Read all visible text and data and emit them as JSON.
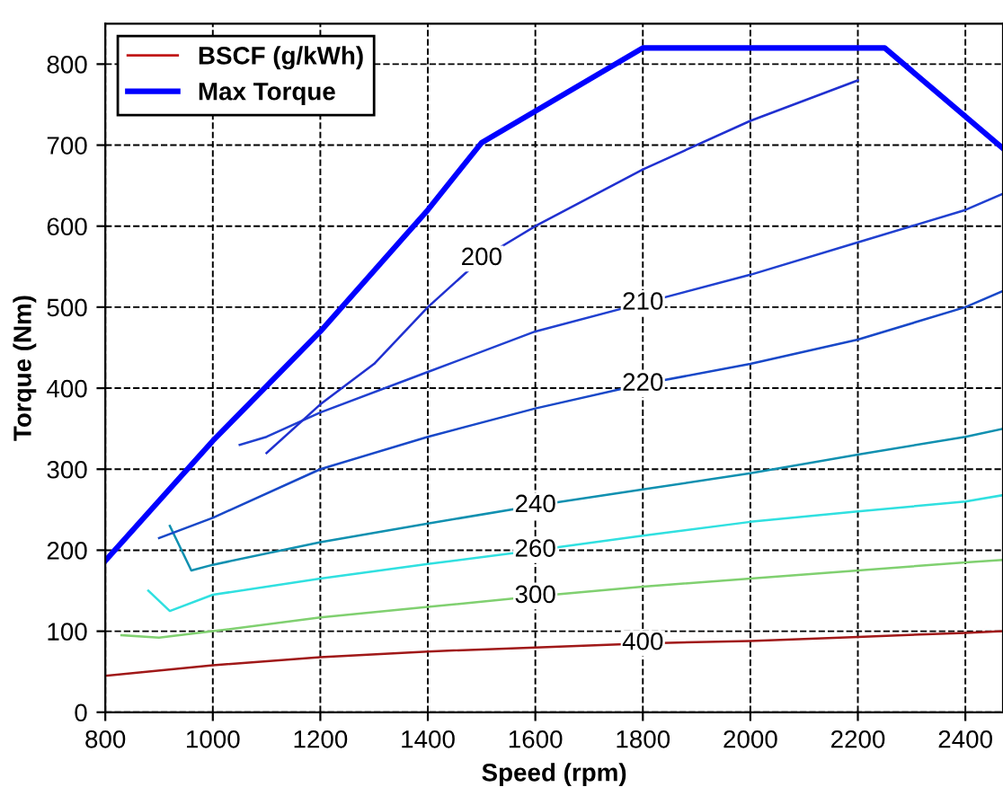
{
  "chart_data": {
    "type": "line",
    "xlabel": "Speed (rpm)",
    "ylabel": "Torque (Nm)",
    "legend_title": "BSCF (g/kWh)",
    "legend": "top left",
    "grid": true,
    "line_style": "solid",
    "marker": "none",
    "xlim": [
      800,
      2470
    ],
    "ylim": [
      0,
      850
    ],
    "xticks": [
      800,
      1000,
      1200,
      1400,
      1600,
      1800,
      2000,
      2200,
      2400
    ],
    "yticks": [
      0,
      100,
      200,
      300,
      400,
      500,
      600,
      700,
      800
    ],
    "series": [
      {
        "name": "400",
        "color": "#a01818",
        "x": [
          800,
          1000,
          1200,
          1400,
          1600,
          1800,
          2000,
          2200,
          2400,
          2470
        ],
        "values": [
          45,
          58,
          68,
          75,
          80,
          85,
          88,
          93,
          98,
          100
        ]
      },
      {
        "name": "300",
        "color": "#80d070",
        "x": [
          830,
          900,
          1000,
          1200,
          1400,
          1600,
          1800,
          2000,
          2200,
          2400,
          2470
        ],
        "values": [
          95,
          92,
          100,
          117,
          130,
          143,
          155,
          165,
          175,
          185,
          188
        ]
      },
      {
        "name": "260",
        "color": "#30e0e0",
        "x": [
          880,
          920,
          1000,
          1200,
          1400,
          1600,
          1800,
          2000,
          2200,
          2400,
          2470
        ],
        "values": [
          150,
          125,
          145,
          165,
          183,
          200,
          218,
          235,
          248,
          260,
          268
        ]
      },
      {
        "name": "240",
        "color": "#1090b0",
        "x": [
          920,
          960,
          1000,
          1200,
          1400,
          1600,
          1800,
          2000,
          2200,
          2400,
          2470
        ],
        "values": [
          230,
          175,
          182,
          210,
          233,
          255,
          275,
          295,
          318,
          340,
          350
        ]
      },
      {
        "name": "220",
        "color": "#1848c8",
        "x": [
          900,
          1000,
          1200,
          1400,
          1600,
          1800,
          2000,
          2200,
          2400,
          2470
        ],
        "values": [
          215,
          240,
          300,
          340,
          375,
          405,
          430,
          460,
          500,
          520
        ]
      },
      {
        "name": "210",
        "color": "#2040d0",
        "x": [
          1050,
          1100,
          1200,
          1400,
          1600,
          1800,
          2000,
          2200,
          2400,
          2470
        ],
        "values": [
          330,
          340,
          370,
          420,
          470,
          505,
          540,
          580,
          620,
          640
        ]
      },
      {
        "name": "200",
        "color": "#2030d0",
        "x": [
          1100,
          1200,
          1300,
          1400,
          1500,
          1600,
          1800,
          2000,
          2200
        ],
        "values": [
          320,
          380,
          430,
          500,
          560,
          600,
          670,
          730,
          780
        ]
      },
      {
        "name": "Max Torque",
        "color": "#0000ff",
        "x": [
          800,
          1000,
          1200,
          1400,
          1500,
          1800,
          2250,
          2470
        ],
        "values": [
          187,
          335,
          470,
          620,
          703,
          820,
          820,
          696
        ]
      }
    ]
  }
}
